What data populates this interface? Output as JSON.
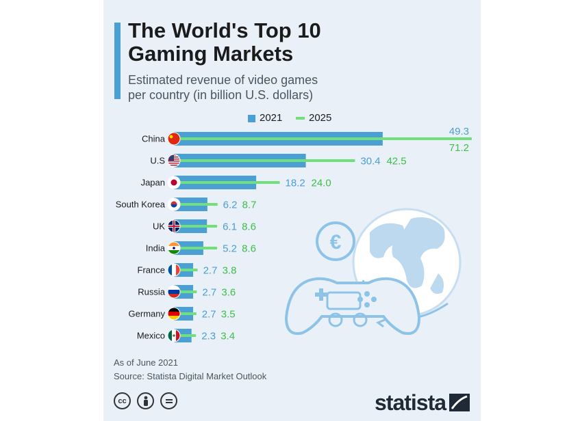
{
  "header": {
    "title": "The World's Top 10\nGaming Markets",
    "subtitle": "Estimated revenue of video games\nper country (in billion U.S. dollars)"
  },
  "legend": {
    "label_2021": "2021",
    "label_2025": "2025"
  },
  "colors": {
    "bar_2021": "#4a9fd5",
    "line_2025": "#6fe07a",
    "value_2021": "#4a9fd5",
    "value_2025": "#3dbf4a",
    "background": "#e9f0f7"
  },
  "chart_data": {
    "type": "bar",
    "orientation": "horizontal",
    "categories": [
      "China",
      "U.S",
      "Japan",
      "South Korea",
      "UK",
      "India",
      "France",
      "Russia",
      "Germany",
      "Mexico"
    ],
    "series": [
      {
        "name": "2021",
        "values": [
          49.3,
          30.4,
          18.2,
          6.2,
          6.1,
          5.2,
          2.7,
          2.7,
          2.7,
          2.3
        ]
      },
      {
        "name": "2025",
        "values": [
          71.2,
          42.5,
          24.0,
          8.7,
          8.6,
          8.6,
          3.8,
          3.6,
          3.5,
          3.4
        ]
      }
    ],
    "value_labels_2021": [
      "49.3",
      "30.4",
      "18.2",
      "6.2",
      "6.1",
      "5.2",
      "2.7",
      "2.7",
      "2.7",
      "2.3"
    ],
    "value_labels_2025": [
      "71.2",
      "42.5",
      "24.0",
      "8.7",
      "8.6",
      "8.6",
      "3.8",
      "3.6",
      "3.5",
      "3.4"
    ],
    "flag_icons": [
      "china-flag-icon",
      "us-flag-icon",
      "japan-flag-icon",
      "south-korea-flag-icon",
      "uk-flag-icon",
      "india-flag-icon",
      "france-flag-icon",
      "russia-flag-icon",
      "germany-flag-icon",
      "mexico-flag-icon"
    ],
    "legend_position": "top",
    "grid": false
  },
  "footer": {
    "note_date": "As of June 2021",
    "note_source": "Source: Statista Digital Market Outlook",
    "license_icons": [
      "cc-icon",
      "attribution-icon",
      "no-derivatives-icon"
    ],
    "brand": "statista"
  },
  "illustration": {
    "icons": [
      "globe-icon",
      "euro-coin-icon",
      "game-controller-icon"
    ]
  }
}
